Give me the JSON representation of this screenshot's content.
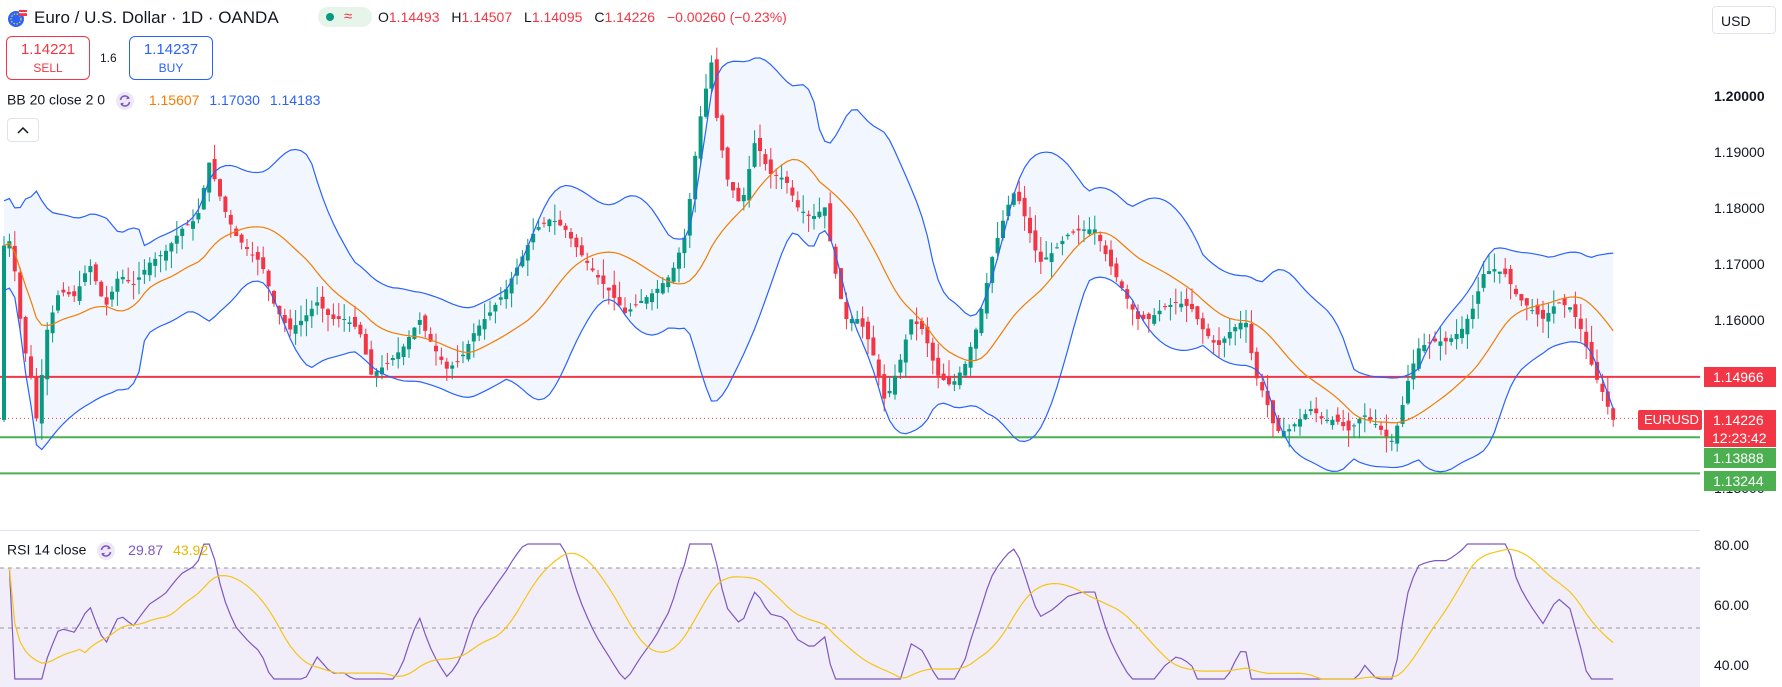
{
  "header": {
    "title": "Euro / U.S. Dollar · 1D · OANDA",
    "live_wave": "≈",
    "ohlc": [
      {
        "key": "O",
        "value": "1.14493"
      },
      {
        "key": "H",
        "value": "1.14507"
      },
      {
        "key": "L",
        "value": "1.14095"
      },
      {
        "key": "C",
        "value": "1.14226"
      },
      {
        "key": "",
        "value": "−0.00260 (−0.23%)"
      }
    ],
    "currency": "USD"
  },
  "trade": {
    "sell_price": "1.14221",
    "sell_label": "SELL",
    "spread": "1.6",
    "buy_price": "1.14237",
    "buy_label": "BUY"
  },
  "bb_legend": {
    "name": "BB 20 close 2 0",
    "basis": "1.15607",
    "upper": "1.17030",
    "lower": "1.14183"
  },
  "rsi_legend": {
    "name": "RSI 14 close",
    "rsi": "29.87",
    "ma": "43.92"
  },
  "price_axis": {
    "labels": [
      "1.20000",
      "1.19000",
      "1.18000",
      "1.17000",
      "1.16000",
      "1.13000"
    ],
    "rsi_labels": [
      "80.00",
      "60.00",
      "40.00"
    ]
  },
  "badges": {
    "resistance": "1.14966",
    "symbol": "EURUSD",
    "current": "1.14226",
    "countdown": "12:23:42",
    "support1": "1.13888",
    "support2": "1.13244"
  },
  "colors": {
    "up": "#089981",
    "down": "#f23645",
    "bb_basis": "#f57c00",
    "bb_band": "#2962ff",
    "resistance_line": "#f23645",
    "support_line": "#4caf50",
    "rsi_line": "#7e57c2",
    "rsi_ma": "#f5c518"
  },
  "chart_data": [
    {
      "type": "candlestick",
      "title": "Euro / U.S. Dollar · 1D · OANDA",
      "ylim": [
        1.13,
        1.21
      ],
      "indicators": [
        "Bollinger Bands (20, 2)"
      ],
      "horizontal_levels": [
        1.14966,
        1.13888,
        1.13244
      ],
      "last_close": 1.14226
    },
    {
      "type": "line",
      "title": "RSI 14 close",
      "series": [
        {
          "name": "RSI",
          "last": 29.87
        },
        {
          "name": "RSI MA",
          "last": 43.92
        }
      ],
      "ylim": [
        30,
        85
      ],
      "reference_levels": [
        70,
        50
      ]
    }
  ]
}
